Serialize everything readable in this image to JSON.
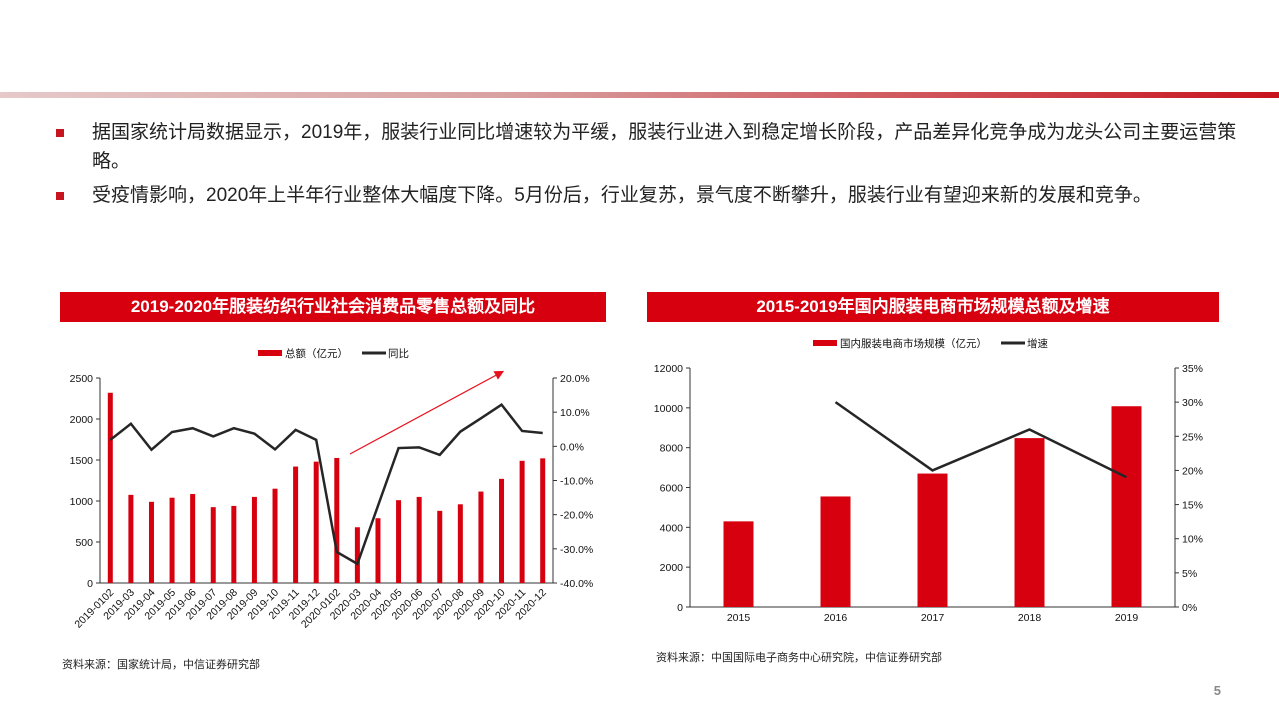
{
  "bullets": [
    "据国家统计局数据显示，2019年，服装行业同比增速较为平缓，服装行业进入到稳定增长阶段，产品差异化竞争成为龙头公司主要运营策略。",
    "受疫情影响，2020年上半年行业整体大幅度下降。5月份后，行业复苏，景气度不断攀升，服装行业有望迎来新的发展和竞争。"
  ],
  "page_number": "5",
  "colors": {
    "accent": "#d7000f",
    "line": "#262626"
  },
  "chart_data": [
    {
      "type": "bar",
      "title": "2019-2020年服装纺织行业社会消费品零售总额及同比",
      "source": "资料来源：国家统计局，中信证券研究部",
      "categories": [
        "2019-0102",
        "2019-03",
        "2019-04",
        "2019-05",
        "2019-06",
        "2019-07",
        "2019-08",
        "2019-09",
        "2019-10",
        "2019-11",
        "2019-12",
        "2020-0102",
        "2020-03",
        "2020-04",
        "2020-05",
        "2020-06",
        "2020-07",
        "2020-08",
        "2020-09",
        "2020-10",
        "2020-11",
        "2020-12"
      ],
      "series": [
        {
          "name": "总额（亿元）",
          "type": "bar",
          "axis": "left",
          "values": [
            2320,
            1075,
            990,
            1040,
            1085,
            925,
            940,
            1050,
            1150,
            1420,
            1480,
            1525,
            680,
            790,
            1010,
            1050,
            880,
            960,
            1115,
            1270,
            1490,
            1520
          ]
        },
        {
          "name": "同比",
          "type": "line",
          "axis": "right",
          "values": [
            1.9,
            6.6,
            -1.0,
            4.2,
            5.3,
            2.9,
            5.3,
            3.7,
            -0.9,
            4.8,
            1.9,
            -30.9,
            -34.4,
            -17.4,
            -0.5,
            -0.3,
            -2.5,
            4.3,
            8.2,
            12.2,
            4.5,
            3.9
          ]
        }
      ],
      "ylim": [
        0,
        2500
      ],
      "yticks": [
        "0",
        "500",
        "1000",
        "1500",
        "2000",
        "2500"
      ],
      "y2lim": [
        -40,
        20
      ],
      "y2ticks": [
        "-40.0%",
        "-30.0%",
        "-20.0%",
        "-10.0%",
        "0.0%",
        "10.0%",
        "20.0%"
      ],
      "annotation": "upward red arrow from 2020-0102 to 2020-10",
      "legend": "top-center"
    },
    {
      "type": "bar",
      "title": "2015-2019年国内服装电商市场规模总额及增速",
      "source": "资料来源：中国国际电子商务中心研究院，中信证券研究部",
      "categories": [
        "2015",
        "2016",
        "2017",
        "2018",
        "2019"
      ],
      "series": [
        {
          "name": "国内服装电商市场规模（亿元）",
          "type": "bar",
          "axis": "left",
          "values": [
            4300,
            5550,
            6700,
            8480,
            10080
          ]
        },
        {
          "name": "增速",
          "type": "line",
          "axis": "right",
          "values": [
            null,
            30,
            20,
            26,
            19
          ]
        }
      ],
      "ylim": [
        0,
        12000
      ],
      "yticks": [
        "0",
        "2000",
        "4000",
        "6000",
        "8000",
        "10000",
        "12000"
      ],
      "y2lim": [
        0,
        35
      ],
      "y2ticks": [
        "0%",
        "5%",
        "10%",
        "15%",
        "20%",
        "25%",
        "30%",
        "35%"
      ],
      "legend": "top-center"
    }
  ]
}
